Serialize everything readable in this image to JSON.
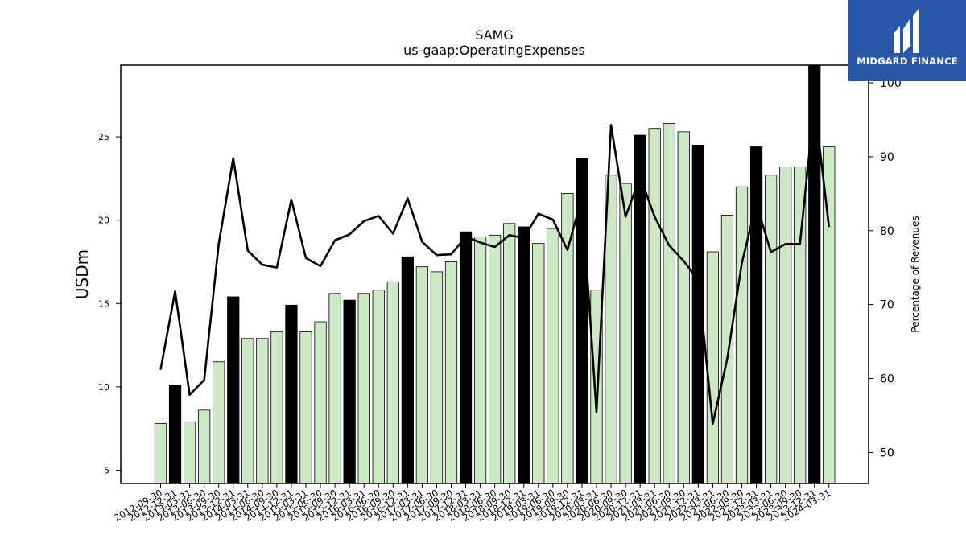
{
  "chart_data": {
    "type": "bar",
    "title": "SAMG",
    "subtitle": "us-gaap:OperatingExpenses",
    "ylabel": "USDm",
    "y2label": "Percentage of Revenues",
    "ylim": [
      4.2,
      29.3
    ],
    "y2lim": [
      45.8,
      102.4
    ],
    "yticks": [
      5,
      10,
      15,
      20,
      25
    ],
    "y2ticks": [
      50,
      60,
      70,
      80,
      90,
      100
    ],
    "categories": [
      "2012-09-30",
      "2012-12-31",
      "2013-03-31",
      "2013-06-30",
      "2013-09-30",
      "2013-12-31",
      "2014-03-31",
      "2014-06-30",
      "2014-09-30",
      "2014-12-31",
      "2015-03-31",
      "2015-06-30",
      "2015-09-30",
      "2015-12-31",
      "2016-03-31",
      "2016-06-30",
      "2016-09-30",
      "2016-12-31",
      "2017-03-31",
      "2017-06-30",
      "2017-09-30",
      "2017-12-31",
      "2018-03-31",
      "2018-06-30",
      "2018-09-30",
      "2018-12-31",
      "2019-03-31",
      "2019-06-30",
      "2019-09-30",
      "2019-12-31",
      "2020-03-31",
      "2020-06-30",
      "2020-09-30",
      "2020-12-31",
      "2021-03-31",
      "2021-06-30",
      "2021-09-30",
      "2021-12-31",
      "2022-03-31",
      "2022-06-30",
      "2022-09-30",
      "2022-12-31",
      "2023-03-31",
      "2023-06-30",
      "2023-09-30",
      "2023-12-31",
      "2024-03-31"
    ],
    "series": [
      {
        "kind": "bar",
        "values": [
          7.8,
          10.1,
          7.9,
          8.6,
          11.5,
          15.4,
          12.9,
          12.9,
          13.3,
          14.9,
          13.3,
          13.9,
          15.6,
          15.2,
          15.6,
          15.8,
          16.3,
          17.8,
          17.2,
          16.9,
          17.5,
          19.3,
          19.0,
          19.1,
          19.8,
          19.6,
          18.6,
          19.5,
          21.6,
          23.7,
          15.8,
          22.7,
          22.2,
          25.1,
          25.5,
          25.8,
          25.3,
          24.5,
          18.1,
          20.3,
          22.0,
          24.4,
          22.7,
          23.2,
          23.2,
          29.3,
          24.4
        ],
        "highlight": [
          false,
          true,
          false,
          false,
          false,
          true,
          false,
          false,
          false,
          true,
          false,
          false,
          false,
          true,
          false,
          false,
          false,
          true,
          false,
          false,
          false,
          true,
          false,
          false,
          false,
          true,
          false,
          false,
          false,
          true,
          false,
          false,
          false,
          true,
          false,
          false,
          false,
          true,
          false,
          false,
          false,
          true,
          false,
          false,
          false,
          true,
          false
        ],
        "color": "#cde8c4",
        "highlight_color": "#000000"
      },
      {
        "kind": "line",
        "axis": "right",
        "values": [
          61.2,
          71.8,
          57.8,
          59.8,
          78.2,
          89.8,
          77.3,
          75.4,
          75.0,
          84.2,
          76.3,
          75.2,
          78.7,
          79.5,
          81.3,
          82.0,
          79.6,
          84.4,
          78.5,
          76.7,
          76.8,
          79.2,
          78.4,
          77.8,
          79.4,
          79.0,
          82.3,
          81.5,
          77.4,
          84.5,
          55.5,
          94.3,
          81.9,
          87.3,
          81.9,
          78.0,
          75.9,
          73.3,
          53.9,
          62.7,
          75.6,
          83.7,
          77.1,
          78.2,
          78.2,
          97.2,
          80.5
        ],
        "color": "#000000"
      }
    ]
  },
  "logo": {
    "text": "MIDGARD FINANCE",
    "color": "#2b57a8"
  }
}
